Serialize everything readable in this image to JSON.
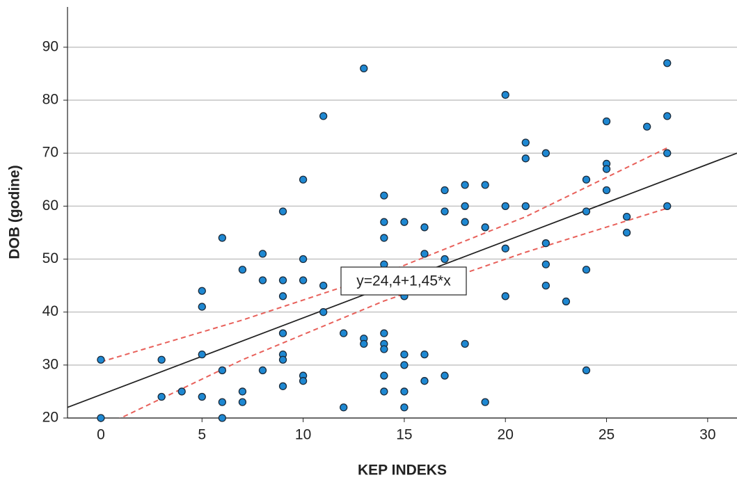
{
  "chart_data": {
    "type": "scatter",
    "x_label": "KEP INDEKS",
    "y_label": "DOB (godine)",
    "xlim": [
      -1.65,
      31.45
    ],
    "ylim": [
      20,
      97.6
    ],
    "xticks": [
      0,
      5,
      10,
      15,
      20,
      25,
      30
    ],
    "yticks": [
      20,
      30,
      40,
      50,
      60,
      70,
      80,
      90
    ],
    "grid": true,
    "color": "#1e88d2",
    "x": [
      0,
      0,
      3,
      3,
      4,
      5,
      5,
      5,
      5,
      6,
      6,
      6,
      6,
      7,
      7,
      7,
      8,
      8,
      8,
      9,
      9,
      9,
      9,
      9,
      9,
      9,
      10,
      10,
      10,
      10,
      10,
      11,
      11,
      11,
      12,
      12,
      13,
      13,
      13,
      14,
      14,
      14,
      14,
      14,
      14,
      14,
      14,
      14,
      15,
      15,
      15,
      15,
      15,
      15,
      16,
      16,
      16,
      16,
      17,
      17,
      17,
      17,
      18,
      18,
      18,
      18,
      19,
      19,
      19,
      20,
      20,
      20,
      20,
      21,
      21,
      21,
      22,
      22,
      22,
      22,
      23,
      24,
      24,
      24,
      24,
      25,
      25,
      25,
      25,
      26,
      26,
      27,
      28,
      28,
      28,
      28
    ],
    "values": [
      31,
      20,
      31,
      24,
      25,
      44,
      41,
      32,
      24,
      54,
      29,
      23,
      20,
      48,
      25,
      23,
      51,
      46,
      29,
      59,
      46,
      43,
      36,
      32,
      31,
      26,
      65,
      50,
      46,
      28,
      27,
      77,
      45,
      40,
      36,
      22,
      86,
      35,
      34,
      62,
      57,
      54,
      49,
      36,
      34,
      33,
      28,
      25,
      57,
      43,
      32,
      30,
      25,
      22,
      56,
      51,
      32,
      27,
      63,
      59,
      50,
      28,
      64,
      60,
      57,
      34,
      64,
      56,
      23,
      81,
      60,
      52,
      43,
      72,
      69,
      60,
      70,
      53,
      49,
      45,
      42,
      65,
      59,
      48,
      29,
      76,
      68,
      67,
      63,
      58,
      55,
      75,
      87,
      77,
      70,
      60
    ],
    "fit_line": {
      "intercept": 24.4,
      "slope": 1.45,
      "label": "y=24,4+1,45*x",
      "color": "#222222"
    },
    "confidence_band": {
      "x": [
        0,
        7,
        14,
        21,
        28
      ],
      "upper": [
        30.6,
        38.5,
        47.3,
        58,
        71
      ],
      "lower": [
        18.2,
        31,
        42.1,
        51.3,
        59.6
      ],
      "color": "#e8605a"
    }
  }
}
